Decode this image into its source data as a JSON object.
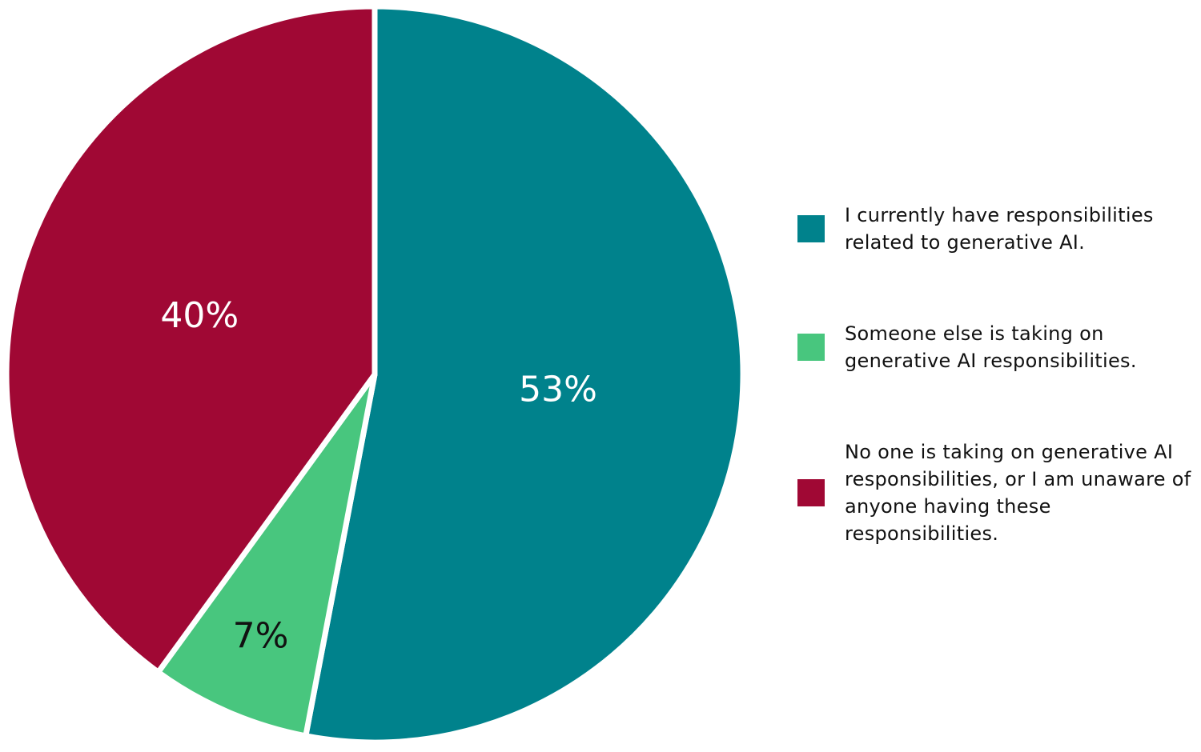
{
  "chart_data": {
    "type": "pie",
    "categories": [
      "I currently have responsibilities related to generative AI.",
      "Someone else is taking on generative AI responsibilities.",
      "No one is taking on generative AI responsibilities, or I am unaware of anyone having these responsibilities."
    ],
    "values": [
      53,
      7,
      40
    ],
    "value_labels": [
      "53%",
      "7%",
      "40%"
    ],
    "colors": [
      "#00828c",
      "#48c67e",
      "#a00834"
    ],
    "legend": "right"
  }
}
